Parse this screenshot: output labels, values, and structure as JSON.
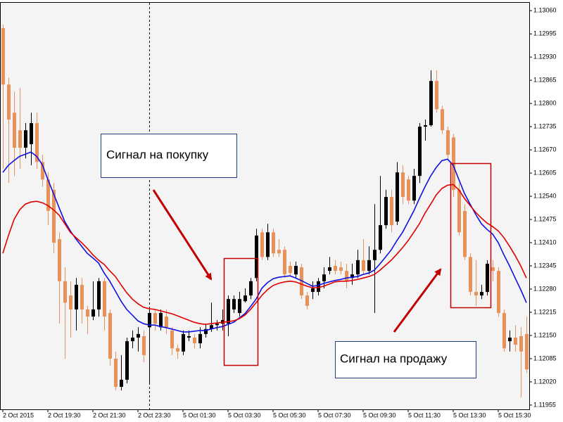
{
  "chart_data": {
    "type": "candlestick",
    "annotations": [
      "Сигнал на покупку",
      "Сигнал на продажу"
    ],
    "categories": [
      "2 Oct 2015",
      null,
      null,
      null,
      null,
      null,
      null,
      null,
      "2 Oct 19:30",
      null,
      null,
      null,
      null,
      null,
      null,
      null,
      "2 Oct 21:30",
      null,
      null,
      null,
      null,
      null,
      null,
      null,
      "2 Oct 23:30",
      null,
      null,
      null,
      null,
      null,
      null,
      null,
      "5 Oct 01:30",
      null,
      null,
      null,
      null,
      null,
      null,
      null,
      "5 Oct 03:30",
      null,
      null,
      null,
      null,
      null,
      null,
      null,
      "5 Oct 05:30",
      null,
      null,
      null,
      null,
      null,
      null,
      null,
      "5 Oct 07:30",
      null,
      null,
      null,
      null,
      null,
      null,
      null,
      "5 Oct 09:30",
      null,
      null,
      null,
      null,
      null,
      null,
      null,
      "5 Oct 11:30",
      null,
      null,
      null,
      null,
      null,
      null,
      null,
      "5 Oct 13:30",
      null,
      null,
      null,
      null,
      null,
      null,
      null,
      "5 Oct 15:30",
      null,
      null,
      null,
      null,
      null
    ],
    "open": [
      1.13011,
      1.12853,
      1.12774,
      1.12725,
      1.12676,
      1.12686,
      1.12745,
      1.12636,
      1.12587,
      1.12558,
      1.1242,
      1.12302,
      1.12262,
      1.12223,
      1.12292,
      1.12223,
      1.12203,
      1.12223,
      1.12302,
      1.12213,
      1.12085,
      1.12006,
      1.12026,
      1.12134,
      1.12144,
      1.12148,
      1.12173,
      1.12213,
      1.12173,
      1.12203,
      1.12164,
      1.12114,
      1.12105,
      1.12144,
      1.12144,
      1.12128,
      1.12154,
      1.12168,
      1.12179,
      1.12183,
      1.12183,
      1.12223,
      1.12213,
      1.12246,
      1.12262,
      1.12311,
      1.12439,
      1.1237,
      1.12439,
      1.1239,
      1.1239,
      1.12345,
      1.12321,
      1.12341,
      1.12262,
      1.12272,
      1.12272,
      1.12302,
      1.12331,
      1.12345,
      1.12341,
      1.12331,
      1.12311,
      1.12321,
      1.12361,
      1.12331,
      1.12361,
      1.1239,
      1.12459,
      1.12538,
      1.12469,
      1.12607,
      1.12587,
      1.12528,
      1.12597,
      1.12735,
      1.12739,
      1.12863,
      1.12784,
      1.12725,
      1.12705,
      1.12558,
      1.12499,
      1.1237,
      1.12272,
      1.12262,
      1.12272,
      1.12341,
      1.12331,
      1.12213,
      1.12134,
      1.12144,
      1.12148,
      1.12154
    ],
    "high": [
      1.13021,
      1.12873,
      1.12833,
      1.12843,
      1.12745,
      1.12774,
      1.12774,
      1.12656,
      1.12607,
      1.12577,
      1.12439,
      1.12341,
      1.12302,
      1.12311,
      1.12311,
      1.12233,
      1.12302,
      1.12311,
      1.12311,
      1.12223,
      1.12105,
      1.12095,
      1.12144,
      1.12164,
      1.12173,
      1.12164,
      1.12223,
      1.12223,
      1.12223,
      1.12223,
      1.12173,
      1.12124,
      1.12164,
      1.12164,
      1.12154,
      1.12173,
      1.12183,
      1.12242,
      1.12193,
      1.12223,
      1.12262,
      1.12262,
      1.12272,
      1.12282,
      1.12311,
      1.12449,
      1.12449,
      1.12463,
      1.12449,
      1.1242,
      1.124,
      1.12357,
      1.12357,
      1.12351,
      1.12272,
      1.12302,
      1.12311,
      1.12341,
      1.1237,
      1.12361,
      1.12357,
      1.12351,
      1.12351,
      1.1239,
      1.1242,
      1.124,
      1.12518,
      1.12597,
      1.12558,
      1.12558,
      1.12636,
      1.12627,
      1.12597,
      1.12617,
      1.12745,
      1.12755,
      1.12893,
      1.12893,
      1.12794,
      1.12735,
      1.12715,
      1.12577,
      1.12518,
      1.1238,
      1.12361,
      1.12292,
      1.12361,
      1.12361,
      1.12341,
      1.12223,
      1.12164,
      1.12179,
      1.12173,
      1.12203
    ],
    "low": [
      1.12617,
      1.12577,
      1.12597,
      1.12617,
      1.12646,
      1.12627,
      1.12617,
      1.12567,
      1.12459,
      1.1238,
      1.12183,
      1.12085,
      1.12144,
      1.12164,
      1.12183,
      1.12154,
      1.12193,
      1.12203,
      1.12164,
      1.12065,
      1.11996,
      1.11996,
      1.12016,
      1.12114,
      1.12105,
      1.12075,
      1.12016,
      1.12164,
      1.12164,
      1.12154,
      1.12095,
      1.12085,
      1.12095,
      1.12134,
      1.12114,
      1.12114,
      1.12144,
      1.1216,
      1.12164,
      1.12164,
      1.12148,
      1.12213,
      1.12203,
      1.12242,
      1.12252,
      1.12302,
      1.12361,
      1.12361,
      1.1237,
      1.1237,
      1.12311,
      1.12317,
      1.12311,
      1.12252,
      1.12223,
      1.12252,
      1.12262,
      1.12282,
      1.12321,
      1.12321,
      1.12321,
      1.12282,
      1.12292,
      1.12311,
      1.12321,
      1.12321,
      1.12213,
      1.1238,
      1.12449,
      1.12439,
      1.12459,
      1.12518,
      1.12518,
      1.12518,
      1.12577,
      1.12696,
      1.12735,
      1.12774,
      1.12715,
      1.12646,
      1.12538,
      1.1243,
      1.12361,
      1.12262,
      1.12233,
      1.12252,
      1.12262,
      1.12302,
      1.12203,
      1.12105,
      1.12105,
      1.12105,
      1.11976,
      1.12045
    ],
    "close": [
      1.12853,
      1.12755,
      1.12676,
      1.12676,
      1.12725,
      1.12745,
      1.12636,
      1.12587,
      1.12499,
      1.1241,
      1.12302,
      1.12242,
      1.12223,
      1.12292,
      1.12223,
      1.12203,
      1.12223,
      1.12302,
      1.12203,
      1.12085,
      1.12006,
      1.12026,
      1.12134,
      1.12144,
      1.12154,
      1.12095,
      1.12213,
      1.12183,
      1.12213,
      1.12173,
      1.12114,
      1.12105,
      1.12154,
      1.12148,
      1.12128,
      1.12154,
      1.12168,
      1.12179,
      1.12183,
      1.12193,
      1.12252,
      1.12252,
      1.12252,
      1.12262,
      1.12302,
      1.1243,
      1.1237,
      1.12439,
      1.1238,
      1.1238,
      1.12321,
      1.12325,
      1.12345,
      1.12262,
      1.12233,
      1.12282,
      1.12302,
      1.12321,
      1.12341,
      1.12331,
      1.12331,
      1.12302,
      1.12321,
      1.12361,
      1.12331,
      1.12361,
      1.1239,
      1.12459,
      1.12538,
      1.12459,
      1.12607,
      1.12538,
      1.12528,
      1.12597,
      1.12735,
      1.12739,
      1.12863,
      1.12784,
      1.12725,
      1.12656,
      1.12558,
      1.12439,
      1.1237,
      1.12272,
      1.12262,
      1.12272,
      1.12351,
      1.12331,
      1.12213,
      1.12114,
      1.12144,
      1.12124,
      1.12105,
      1.12055
    ],
    "up_color": "#000000",
    "down_color": "#e8915b",
    "lines": [
      {
        "color": "#1010e0",
        "values": [
          1.12607,
          1.12627,
          1.1264,
          1.12652,
          1.12658,
          1.12664,
          1.12652,
          1.12629,
          1.12587,
          1.12548,
          1.12508,
          1.12469,
          1.12443,
          1.1242,
          1.124,
          1.1238,
          1.12367,
          1.12353,
          1.12325,
          1.12302,
          1.12274,
          1.12246,
          1.12223,
          1.12207,
          1.12191,
          1.12183,
          1.12179,
          1.12179,
          1.12175,
          1.12172,
          1.12168,
          1.12164,
          1.1216,
          1.1216,
          1.12162,
          1.12164,
          1.12164,
          1.12168,
          1.12172,
          1.12175,
          1.12181,
          1.12187,
          1.12199,
          1.12211,
          1.12231,
          1.12252,
          1.12282,
          1.12298,
          1.12309,
          1.12313,
          1.12315,
          1.12317,
          1.12311,
          1.12304,
          1.12296,
          1.12288,
          1.1229,
          1.12296,
          1.123,
          1.12304,
          1.12307,
          1.12311,
          1.12313,
          1.12315,
          1.12321,
          1.12325,
          1.12333,
          1.12351,
          1.1237,
          1.1239,
          1.12416,
          1.12439,
          1.12469,
          1.12499,
          1.12534,
          1.12567,
          1.12597,
          1.12621,
          1.1264,
          1.12644,
          1.12627,
          1.12587,
          1.12548,
          1.12518,
          1.12489,
          1.12463,
          1.12447,
          1.12434,
          1.1241,
          1.12376,
          1.12345,
          1.12311,
          1.12278,
          1.12242
        ]
      },
      {
        "color": "#e00000",
        "values": [
          1.1238,
          1.1243,
          1.12475,
          1.12502,
          1.12518,
          1.12524,
          1.12526,
          1.12522,
          1.12514,
          1.12502,
          1.12487,
          1.12463,
          1.12439,
          1.12424,
          1.1241,
          1.12394,
          1.12376,
          1.12361,
          1.12349,
          1.12331,
          1.12315,
          1.12292,
          1.1227,
          1.12252,
          1.12239,
          1.12229,
          1.12225,
          1.12223,
          1.12219,
          1.12215,
          1.12211,
          1.12205,
          1.12199,
          1.12193,
          1.12187,
          1.12183,
          1.12181,
          1.12183,
          1.12185,
          1.12187,
          1.12189,
          1.12191,
          1.12197,
          1.12207,
          1.12223,
          1.12242,
          1.12262,
          1.12278,
          1.1229,
          1.12296,
          1.123,
          1.12302,
          1.123,
          1.12294,
          1.12288,
          1.12284,
          1.12284,
          1.12288,
          1.12294,
          1.123,
          1.12302,
          1.12302,
          1.12304,
          1.12307,
          1.12311,
          1.12315,
          1.12321,
          1.12333,
          1.12347,
          1.12361,
          1.12378,
          1.12396,
          1.12416,
          1.12439,
          1.12463,
          1.12493,
          1.12518,
          1.12544,
          1.12562,
          1.12571,
          1.12573,
          1.12558,
          1.12534,
          1.12514,
          1.12495,
          1.12479,
          1.12465,
          1.12455,
          1.12443,
          1.12424,
          1.124,
          1.12374,
          1.12345,
          1.12311
        ]
      }
    ],
    "ylim": [
      1.11943,
      1.13084
    ],
    "yticks": [
      1.11955,
      {
        "value": 1.1202,
        "label": "1.12020"
      },
      1.12085,
      {
        "value": 1.1215,
        "label": "1.12150"
      },
      1.12215,
      {
        "value": 1.1228,
        "label": "1.12280"
      },
      1.12345,
      {
        "value": 1.1241,
        "label": "1.12410"
      },
      1.12475,
      {
        "value": 1.1254,
        "label": "1.12540"
      },
      1.12605,
      {
        "value": 1.1267,
        "label": "1.12670"
      },
      1.12735,
      {
        "value": 1.128,
        "label": "1.12800"
      },
      1.12865,
      {
        "value": 1.1293,
        "label": "1.12930"
      },
      1.12995,
      {
        "value": 1.1306,
        "label": "1.13060"
      }
    ],
    "grid": false
  }
}
